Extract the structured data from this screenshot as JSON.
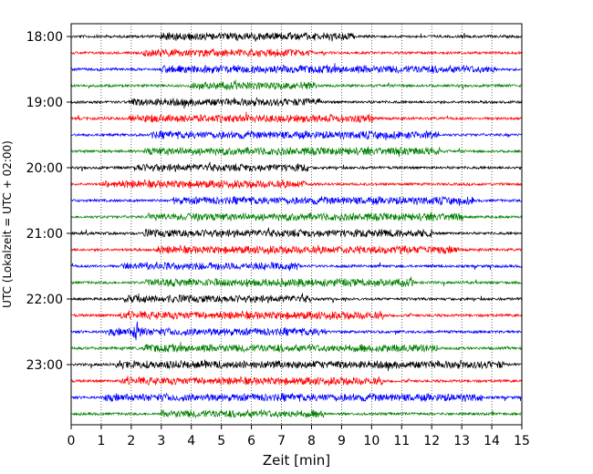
{
  "chart_data": {
    "type": "line",
    "chart_kind": "helicorder seismogram",
    "xlabel": "Zeit  [min]",
    "ylabel": "UTC (Lokalzeit = UTC + 02:00)",
    "xlim": [
      0,
      15
    ],
    "x_ticks": [
      "0",
      "1",
      "2",
      "3",
      "4",
      "5",
      "6",
      "7",
      "8",
      "9",
      "10",
      "11",
      "12",
      "13",
      "14",
      "15"
    ],
    "y_ticks": [
      "18:00",
      "19:00",
      "20:00",
      "21:00",
      "22:00",
      "23:00"
    ],
    "ylim": [
      "18:00",
      "24:00"
    ],
    "minutes_per_trace": 15,
    "grid": "vertical dotted at each minute",
    "trace_colors": [
      "#000000",
      "#ff0000",
      "#0000ff",
      "#008000"
    ],
    "trace_count": 24,
    "event": {
      "trace_time": "22:30",
      "minute": 2.2
    }
  }
}
